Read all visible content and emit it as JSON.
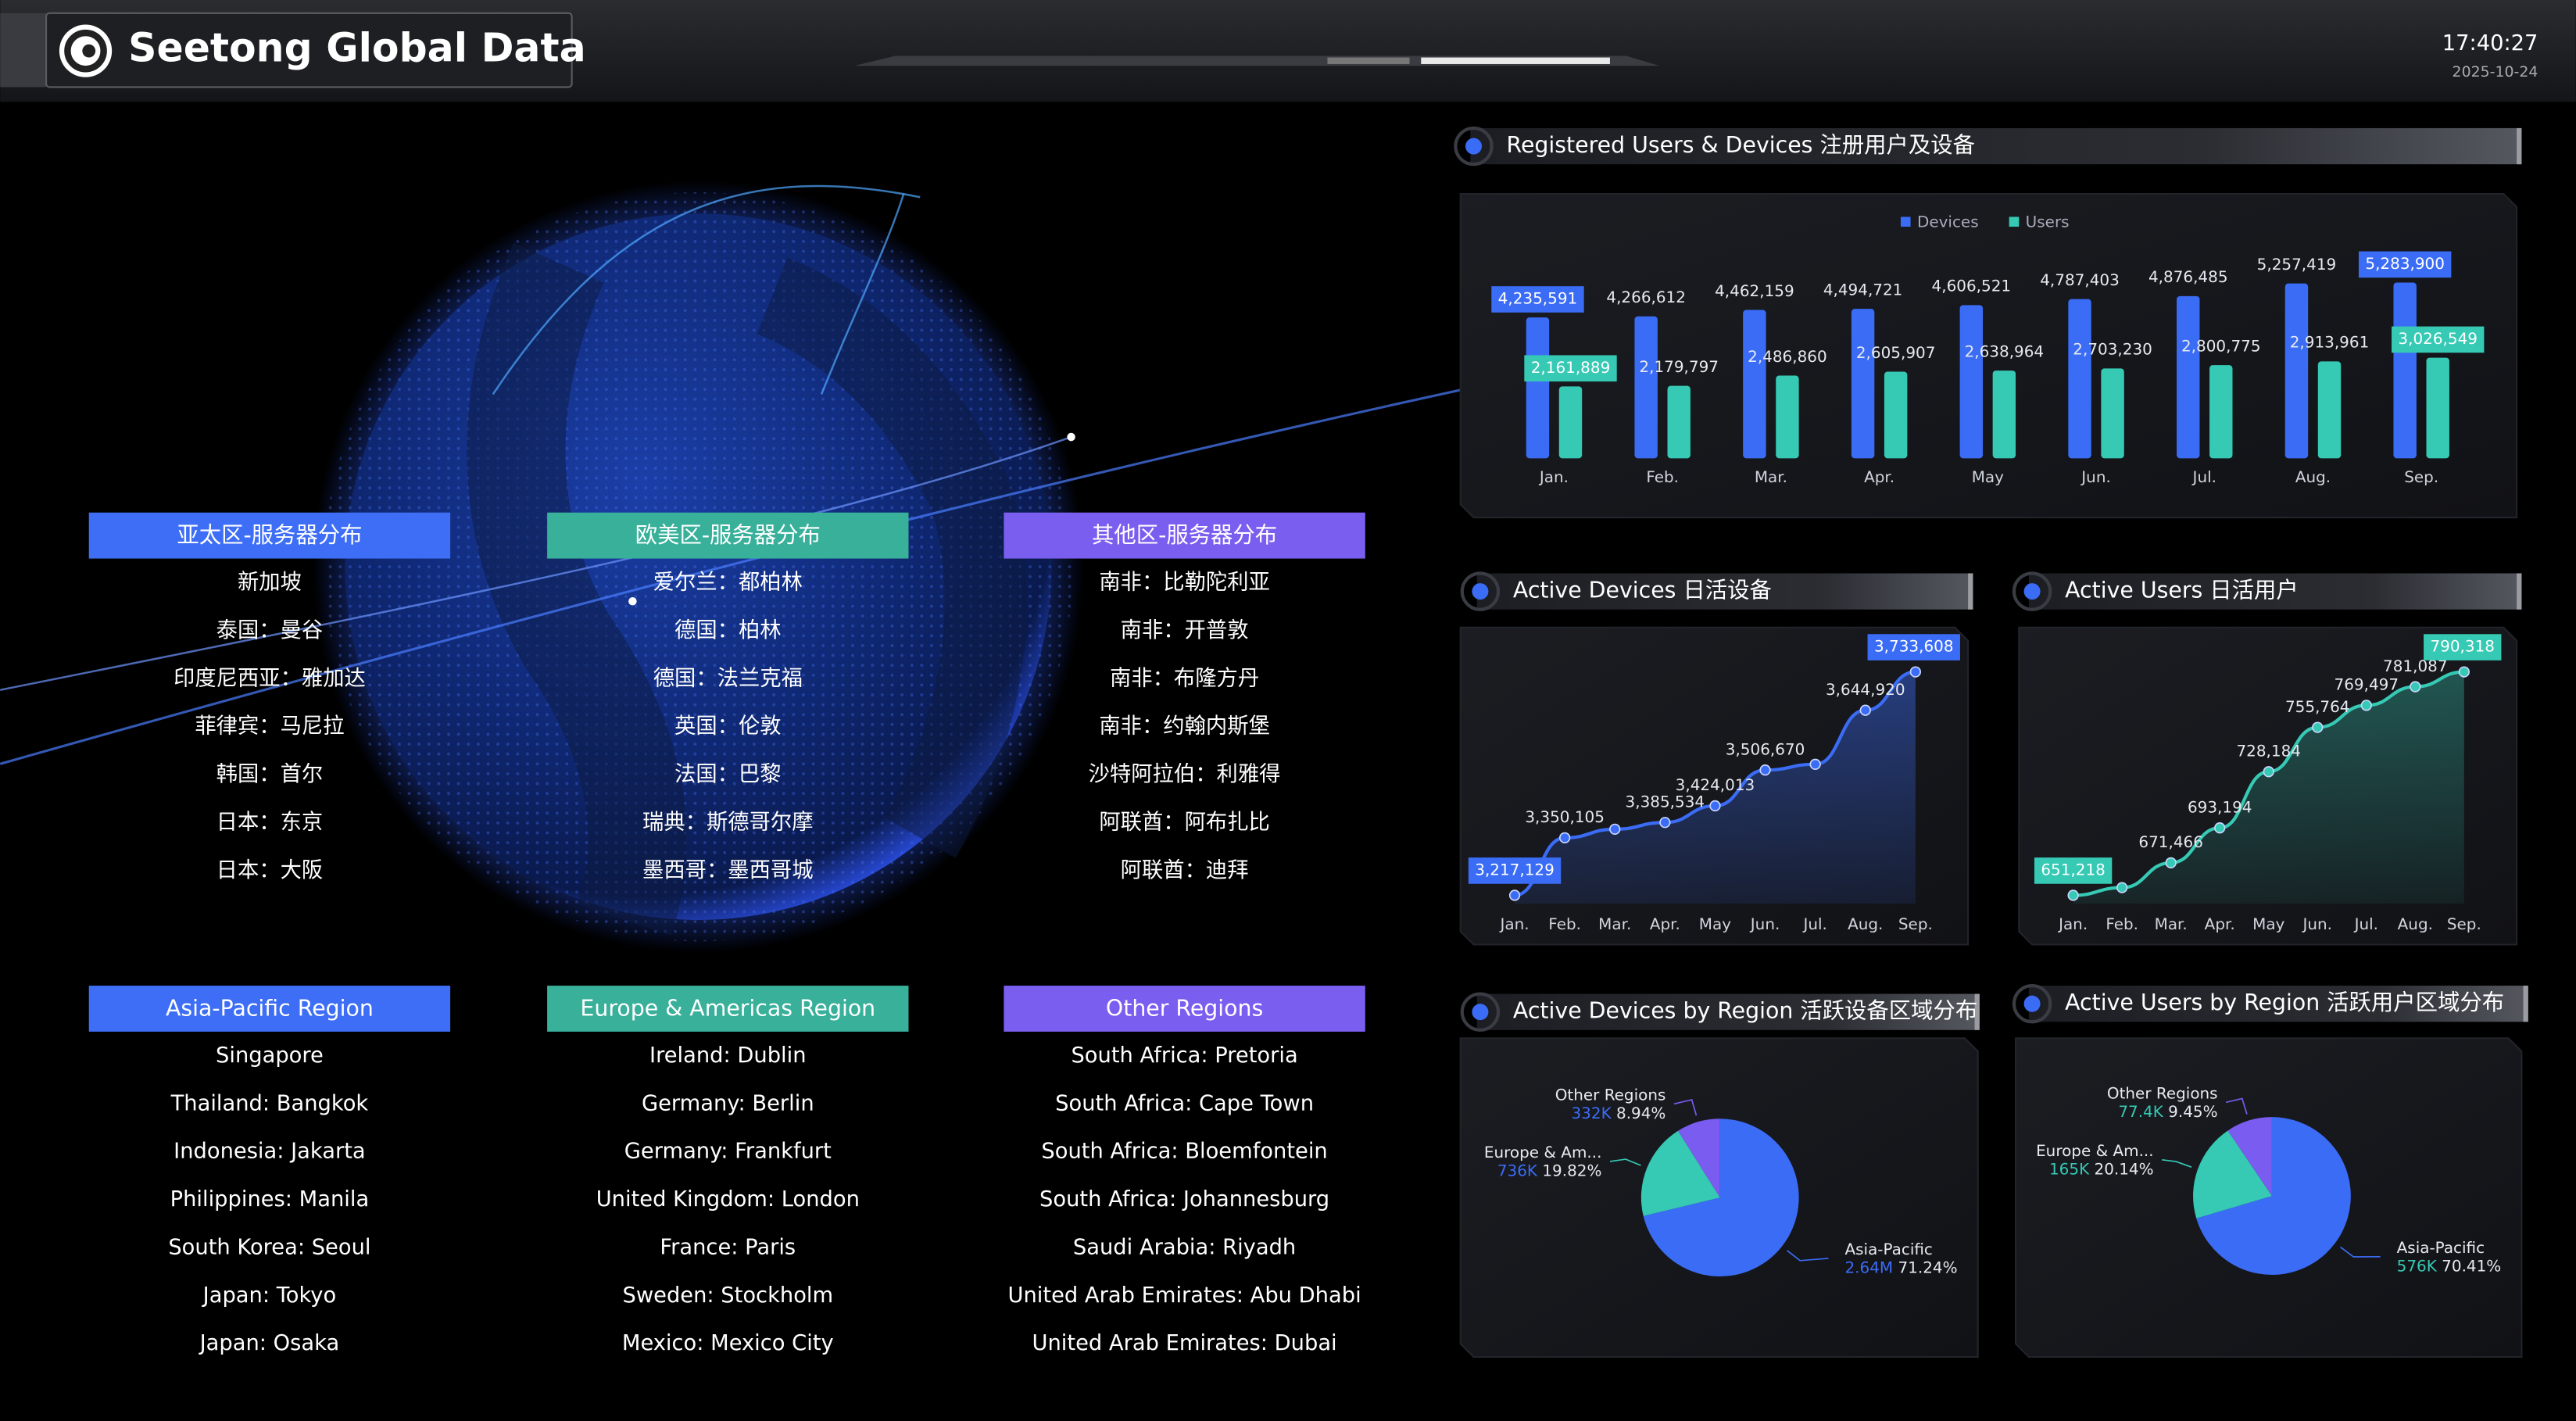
{
  "header": {
    "title": "Seetong Global Data",
    "time": "17:40:27",
    "date": "2025-10-24"
  },
  "regions_cn": [
    {
      "title": "亚太区-服务器分布",
      "items": [
        "新加坡",
        "泰国：曼谷",
        "印度尼西亚：雅加达",
        "菲律宾：马尼拉",
        "韩国：首尔",
        "日本：东京",
        "日本：大阪"
      ]
    },
    {
      "title": "欧美区-服务器分布",
      "items": [
        "爱尔兰：都柏林",
        "德国：柏林",
        "德国：法兰克福",
        "英国：伦敦",
        "法国：巴黎",
        "瑞典：斯德哥尔摩",
        "墨西哥：墨西哥城"
      ]
    },
    {
      "title": "其他区-服务器分布",
      "items": [
        "南非：比勒陀利亚",
        "南非：开普敦",
        "南非：布隆方丹",
        "南非：约翰内斯堡",
        "沙特阿拉伯：利雅得",
        "阿联酋：阿布扎比",
        "阿联酋：迪拜"
      ]
    }
  ],
  "regions_en": [
    {
      "title": "Asia-Pacific Region",
      "items": [
        "Singapore",
        "Thailand: Bangkok",
        "Indonesia: Jakarta",
        "Philippines: Manila",
        "South Korea: Seoul",
        "Japan: Tokyo",
        "Japan: Osaka"
      ]
    },
    {
      "title": "Europe & Americas Region",
      "items": [
        "Ireland: Dublin",
        "Germany: Berlin",
        "Germany: Frankfurt",
        "United Kingdom: London",
        "France: Paris",
        "Sweden: Stockholm",
        "Mexico: Mexico City"
      ]
    },
    {
      "title": "Other Regions",
      "items": [
        "South Africa: Pretoria",
        "South Africa: Cape Town",
        "South Africa: Bloemfontein",
        "South Africa: Johannesburg",
        "Saudi Arabia: Riyadh",
        "United Arab Emirates: Abu Dhabi",
        "United Arab Emirates: Dubai"
      ]
    }
  ],
  "chart_data": [
    {
      "type": "bar",
      "title": "Registered Users & Devices 注册用户及设备",
      "categories": [
        "Jan.",
        "Feb.",
        "Mar.",
        "Apr.",
        "May",
        "Jun.",
        "Jul.",
        "Aug.",
        "Sep."
      ],
      "series": [
        {
          "name": "Devices",
          "color": "#3b6cf6",
          "values": [
            4235591,
            4266612,
            4462159,
            4494721,
            4606521,
            4787403,
            4876485,
            5257419,
            5283900
          ],
          "value_labels": [
            "4,235,591",
            "4,266,612",
            "4,462,159",
            "4,494,721",
            "4,606,521",
            "4,787,403",
            "4,876,485",
            "5,257,419",
            "5,283,900"
          ]
        },
        {
          "name": "Users",
          "color": "#36c9b4",
          "values": [
            2161889,
            2179797,
            2486860,
            2605907,
            2638964,
            2703230,
            2800775,
            2913961,
            3026549
          ],
          "value_labels": [
            "2,161,889",
            "2,179,797",
            "2,486,860",
            "2,605,907",
            "2,638,964",
            "2,703,230",
            "2,800,775",
            "2,913,961",
            "3,026,549"
          ]
        }
      ],
      "legend": "top"
    },
    {
      "type": "line",
      "title": "Active Devices 日活设备",
      "color": "#3b6cf6",
      "categories": [
        "Jan.",
        "Feb.",
        "Mar.",
        "Apr.",
        "May",
        "Jun.",
        "Jul.",
        "Aug.",
        "Sep."
      ],
      "values": [
        3217129,
        3350105,
        3370000,
        3385534,
        3424013,
        3506670,
        3520000,
        3644920,
        3733608
      ],
      "value_labels": [
        "3,217,129",
        "3,350,105",
        null,
        "3,385,534",
        "3,424,013",
        "3,506,670",
        null,
        "3,644,920",
        "3,733,608"
      ]
    },
    {
      "type": "line",
      "title": "Active Users 日活用户",
      "color": "#36c9b4",
      "categories": [
        "Jan.",
        "Feb.",
        "Mar.",
        "Apr.",
        "May",
        "Jun.",
        "Jul.",
        "Aug.",
        "Sep."
      ],
      "values": [
        651218,
        656000,
        671466,
        693194,
        728184,
        755764,
        769497,
        781087,
        790318
      ],
      "value_labels": [
        "651,218",
        null,
        "671,466",
        "693,194",
        "728,184",
        "755,764",
        "769,497",
        "781,087",
        "790,318"
      ]
    },
    {
      "type": "pie",
      "title": "Active Devices by Region 活跃设备区域分布",
      "categories": [
        "Asia-Pacific",
        "Europe & Am...",
        "Other Regions"
      ],
      "values": [
        71.24,
        19.82,
        8.94
      ],
      "value_labels": [
        "71.24%",
        "19.82%",
        "8.94%"
      ],
      "amounts": [
        "2.64M",
        "736K",
        "332K"
      ],
      "colors": [
        "#3b6cf6",
        "#36c9b4",
        "#7b5cf0"
      ],
      "amount_color": "#3b6cf6"
    },
    {
      "type": "pie",
      "title": "Active Users by Region 活跃用户区域分布",
      "categories": [
        "Asia-Pacific",
        "Europe & Am...",
        "Other Regions"
      ],
      "values": [
        70.41,
        20.14,
        9.45
      ],
      "value_labels": [
        "70.41%",
        "20.14%",
        "9.45%"
      ],
      "amounts": [
        "576K",
        "165K",
        "77.4K"
      ],
      "colors": [
        "#3b6cf6",
        "#36c9b4",
        "#7b5cf0"
      ],
      "amount_color": "#36c9b4"
    }
  ]
}
